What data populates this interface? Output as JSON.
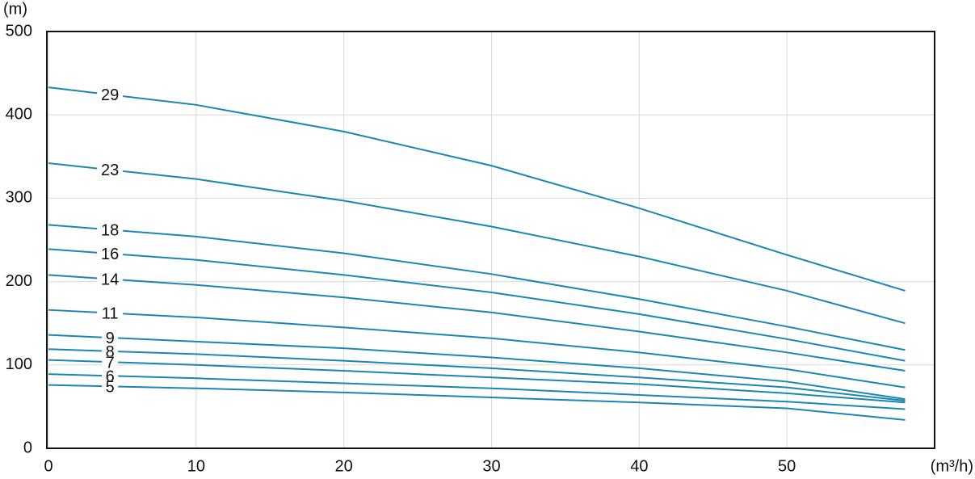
{
  "chart_data": {
    "type": "line",
    "y_label": "(m)",
    "x_label": "(m³/h)",
    "x": [
      0,
      10,
      20,
      30,
      40,
      50,
      58
    ],
    "xlim": [
      0,
      60
    ],
    "xticks": [
      0,
      10,
      20,
      30,
      40,
      50
    ],
    "ylim": [
      0,
      500
    ],
    "yticks": [
      0,
      100,
      200,
      300,
      400,
      500
    ],
    "grid": true,
    "series": [
      {
        "name": "29",
        "color": "#1a87b3",
        "values": [
          433,
          412,
          380,
          339,
          288,
          232,
          189
        ]
      },
      {
        "name": "23",
        "color": "#1a87b3",
        "values": [
          342,
          323,
          297,
          266,
          230,
          189,
          150
        ]
      },
      {
        "name": "18",
        "color": "#1a87b3",
        "values": [
          268,
          254,
          234,
          209,
          179,
          146,
          118
        ]
      },
      {
        "name": "16",
        "color": "#1a87b3",
        "values": [
          239,
          226,
          208,
          187,
          161,
          131,
          105
        ]
      },
      {
        "name": "14",
        "color": "#1a87b3",
        "values": [
          208,
          196,
          181,
          163,
          140,
          115,
          93
        ]
      },
      {
        "name": "11",
        "color": "#1a87b3",
        "values": [
          166,
          157,
          145,
          132,
          115,
          95,
          73
        ]
      },
      {
        "name": "9",
        "color": "#1a87b3",
        "values": [
          136,
          128,
          120,
          109,
          96,
          80,
          59
        ]
      },
      {
        "name": "8",
        "color": "#1a87b3",
        "values": [
          119,
          113,
          105,
          96,
          85,
          73,
          57
        ]
      },
      {
        "name": "7",
        "color": "#1a87b3",
        "values": [
          106,
          100,
          93,
          85,
          77,
          66,
          55
        ]
      },
      {
        "name": "6",
        "color": "#1a87b3",
        "values": [
          89,
          84,
          78,
          72,
          64,
          56,
          47
        ]
      },
      {
        "name": "5",
        "color": "#1a87b3",
        "values": [
          76,
          72,
          67,
          61,
          55,
          48,
          34
        ]
      }
    ]
  }
}
